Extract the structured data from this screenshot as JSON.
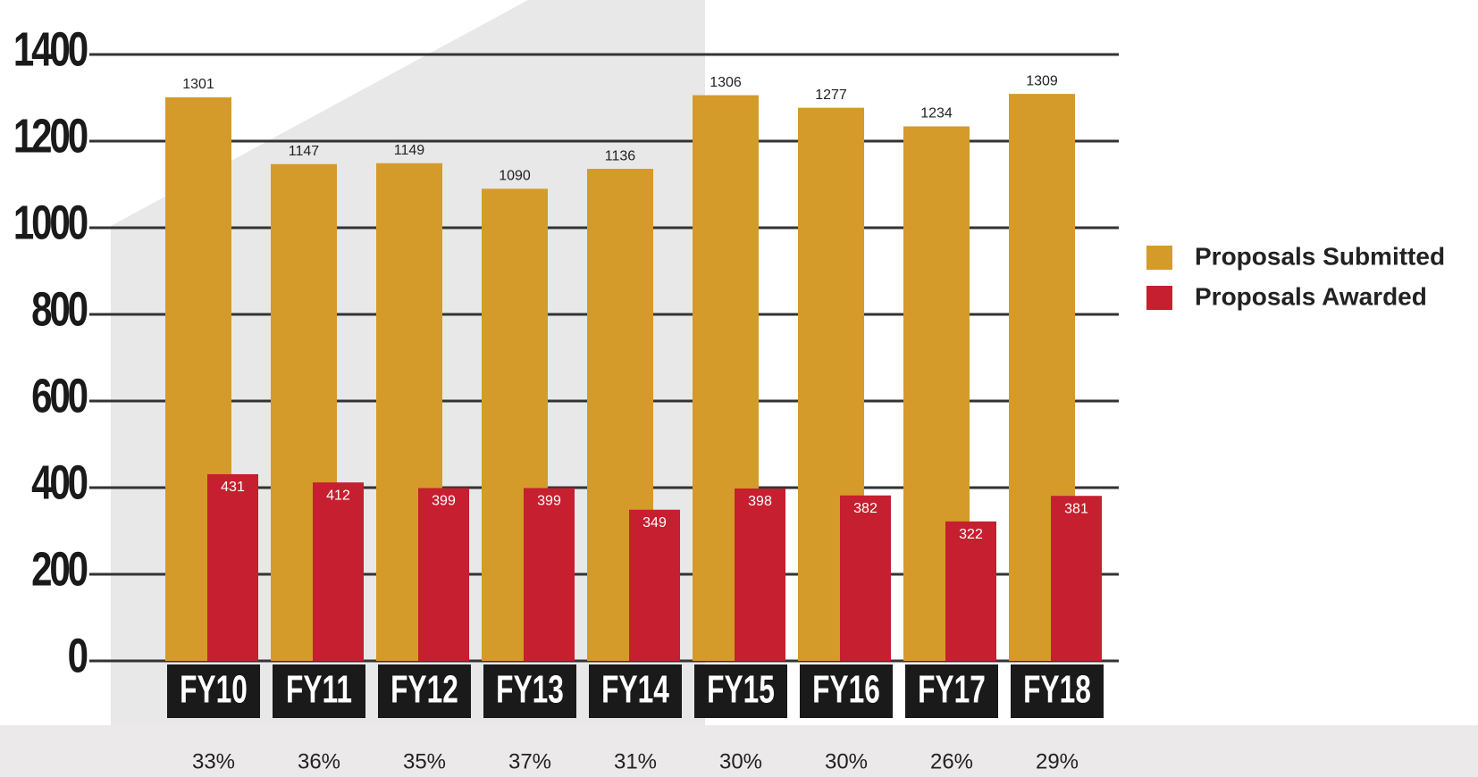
{
  "chart_data": {
    "type": "bar",
    "categories": [
      "FY10",
      "FY11",
      "FY12",
      "FY13",
      "FY14",
      "FY15",
      "FY16",
      "FY17",
      "FY18"
    ],
    "series": [
      {
        "name": "Proposals Submitted",
        "color": "#d49b2a",
        "values": [
          1301,
          1147,
          1149,
          1090,
          1136,
          1306,
          1277,
          1234,
          1309
        ]
      },
      {
        "name": "Proposals Awarded",
        "color": "#c61f30",
        "values": [
          431,
          412,
          399,
          399,
          349,
          398,
          382,
          322,
          381
        ]
      }
    ],
    "rates": [
      "33%",
      "36%",
      "35%",
      "37%",
      "31%",
      "30%",
      "30%",
      "26%",
      "29%"
    ],
    "ylim": [
      0,
      1400
    ],
    "yticks": [
      0,
      200,
      400,
      600,
      800,
      1000,
      1200,
      1400
    ],
    "grid": true,
    "legend": "right"
  }
}
